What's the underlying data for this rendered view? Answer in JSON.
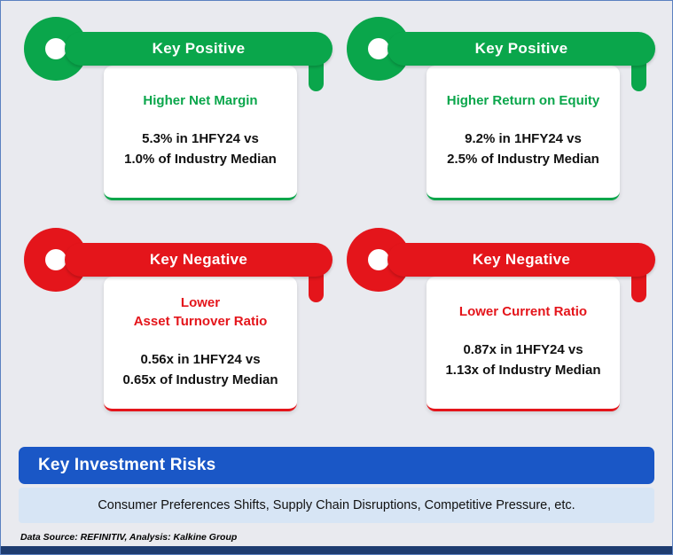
{
  "colors": {
    "positive_green": "#0aa64b",
    "negative_red": "#e4151b",
    "banner_blue": "#1a57c6",
    "risk_bg": "#d7e5f5",
    "page_bg": "#e9eaef",
    "bottom_bar": "#1e3c70",
    "border": "#5b81c0"
  },
  "cards": [
    {
      "sentiment": "positive",
      "key_label": "Key Positive",
      "title": "Higher Net Margin",
      "stats": "5.3% in 1HFY24 vs\n1.0% of Industry Median"
    },
    {
      "sentiment": "positive",
      "key_label": "Key Positive",
      "title": "Higher Return on Equity",
      "stats": "9.2% in 1HFY24 vs\n2.5% of Industry Median"
    },
    {
      "sentiment": "negative",
      "key_label": "Key Negative",
      "title": "Lower\nAsset Turnover Ratio",
      "stats": "0.56x in 1HFY24 vs\n0.65x of Industry Median"
    },
    {
      "sentiment": "negative",
      "key_label": "Key Negative",
      "title": "Lower Current Ratio",
      "stats": "0.87x in 1HFY24 vs\n1.13x of Industry Median"
    }
  ],
  "risks": {
    "title": "Key Investment Risks",
    "description": "Consumer Preferences Shifts, Supply Chain Disruptions, Competitive Pressure, etc."
  },
  "footer": {
    "source_note": "Data Source: REFINITIV, Analysis: Kalkine Group"
  }
}
